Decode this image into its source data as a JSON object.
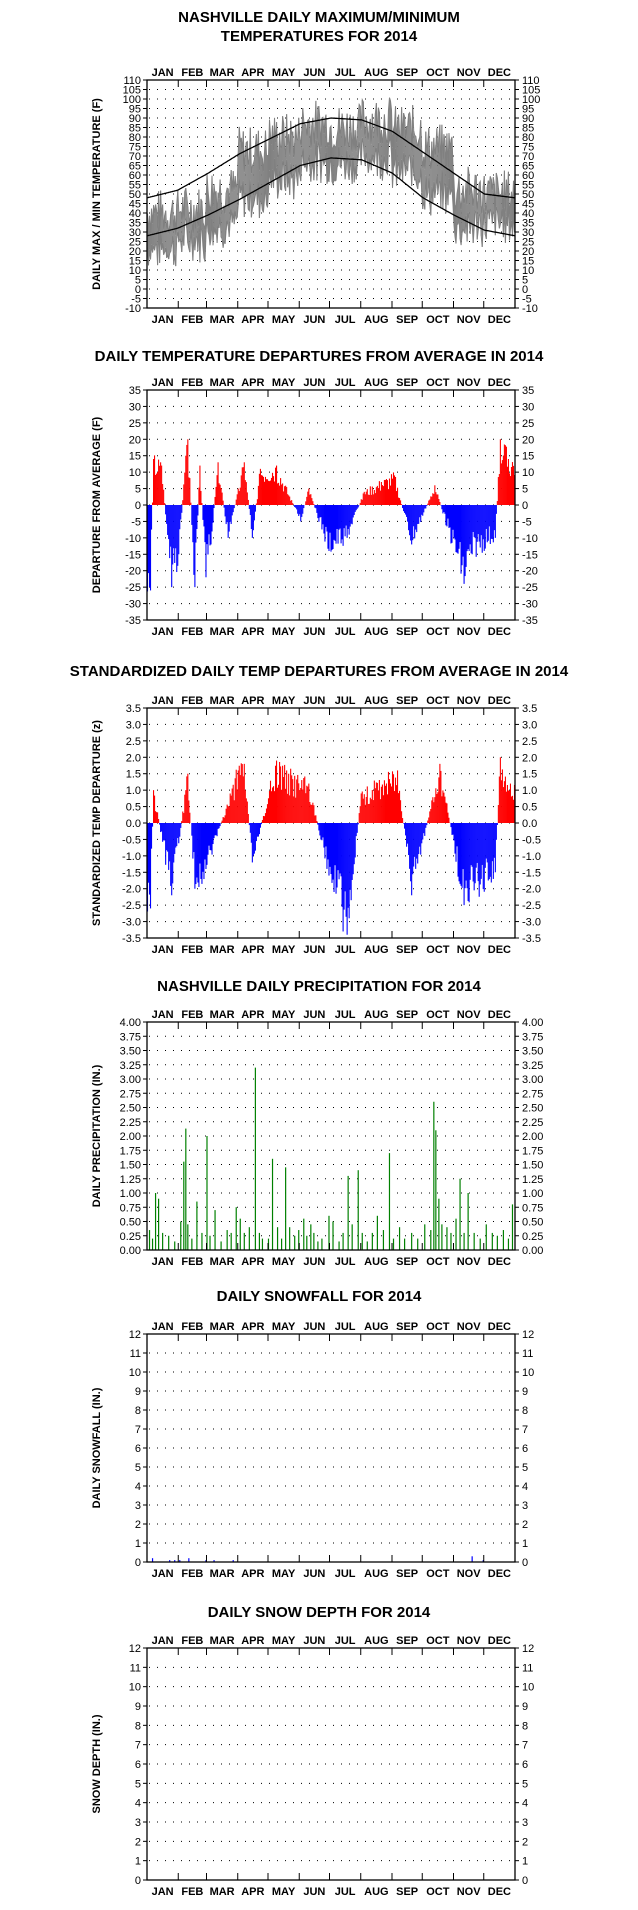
{
  "chart_data": [
    {
      "id": "temp",
      "type": "line",
      "title": [
        "NASHVILLE DAILY MAXIMUM/MINIMUM",
        "TEMPERATURES FOR 2014"
      ],
      "ylabel": "DAILY MAX / MIN TEMPERATURE (F)",
      "ylim": [
        -10,
        110
      ],
      "ytick_step": 5,
      "ytick_decimals": 0,
      "months": [
        "JAN",
        "FEB",
        "MAR",
        "APR",
        "MAY",
        "JUN",
        "JUL",
        "AUG",
        "SEP",
        "OCT",
        "NOV",
        "DEC"
      ],
      "series_color": "#808080",
      "normal_color": "#000000",
      "normal_high": [
        48,
        52,
        61,
        71,
        79,
        87,
        90,
        89,
        83,
        72,
        61,
        50,
        48
      ],
      "normal_low": [
        28,
        32,
        39,
        47,
        56,
        65,
        69,
        68,
        61,
        48,
        39,
        31,
        28
      ],
      "daily_high_monthly_mean": [
        40,
        42,
        52,
        73,
        80,
        87,
        85,
        89,
        84,
        74,
        52,
        50
      ],
      "daily_low_monthly_mean": [
        22,
        26,
        33,
        48,
        58,
        67,
        66,
        70,
        62,
        50,
        33,
        35
      ]
    },
    {
      "id": "dep",
      "type": "bar",
      "title": [
        "DAILY TEMPERATURE DEPARTURES FROM AVERAGE IN 2014"
      ],
      "ylabel": "DEPARTURE FROM AVERAGE (F)",
      "ylim": [
        -35,
        35
      ],
      "ytick_step": 5,
      "ytick_decimals": 0,
      "months": [
        "JAN",
        "FEB",
        "MAR",
        "APR",
        "MAY",
        "JUN",
        "JUL",
        "AUG",
        "SEP",
        "OCT",
        "NOV",
        "DEC"
      ],
      "pos_color": "#ff0000",
      "neg_color": "#0000ff",
      "events": [
        [
          3,
          -26
        ],
        [
          6,
          14
        ],
        [
          14,
          12
        ],
        [
          24,
          -25
        ],
        [
          31,
          -15
        ],
        [
          38,
          15
        ],
        [
          40,
          20
        ],
        [
          47,
          -25
        ],
        [
          52,
          12
        ],
        [
          58,
          -22
        ],
        [
          63,
          -12
        ],
        [
          70,
          13
        ],
        [
          80,
          -10
        ],
        [
          96,
          13
        ],
        [
          104,
          -10
        ],
        [
          112,
          11
        ],
        [
          128,
          12
        ],
        [
          152,
          -5
        ],
        [
          160,
          5
        ],
        [
          180,
          -14
        ],
        [
          198,
          -10
        ],
        [
          215,
          4
        ],
        [
          232,
          7
        ],
        [
          245,
          9
        ],
        [
          262,
          -12
        ],
        [
          285,
          6
        ],
        [
          314,
          -24
        ],
        [
          322,
          -15
        ],
        [
          345,
          -10
        ],
        [
          350,
          20
        ],
        [
          358,
          14
        ]
      ]
    },
    {
      "id": "std",
      "type": "bar",
      "title": [
        "STANDARDIZED DAILY TEMP DEPARTURES FROM AVERAGE IN 2014"
      ],
      "ylabel": "STANDARDIZED TEMP DEPARTURE (z)",
      "ylim": [
        -3.5,
        3.5
      ],
      "ytick_step": 0.5,
      "ytick_decimals": 1,
      "months": [
        "JAN",
        "FEB",
        "MAR",
        "APR",
        "MAY",
        "JUN",
        "JUL",
        "AUG",
        "SEP",
        "OCT",
        "NOV",
        "DEC"
      ],
      "pos_color": "#ff0000",
      "neg_color": "#0000ff",
      "events": [
        [
          3,
          -2.6
        ],
        [
          6,
          1.0
        ],
        [
          24,
          -2.2
        ],
        [
          38,
          1.0
        ],
        [
          40,
          1.5
        ],
        [
          47,
          -2.0
        ],
        [
          58,
          -1.4
        ],
        [
          90,
          1.6
        ],
        [
          96,
          1.8
        ],
        [
          104,
          -1.2
        ],
        [
          128,
          1.9
        ],
        [
          140,
          1.5
        ],
        [
          160,
          1.2
        ],
        [
          180,
          -1.6
        ],
        [
          198,
          -3.4
        ],
        [
          200,
          -2.9
        ],
        [
          212,
          0.9
        ],
        [
          235,
          1.3
        ],
        [
          248,
          1.6
        ],
        [
          262,
          -2.2
        ],
        [
          290,
          1.8
        ],
        [
          314,
          -2.5
        ],
        [
          345,
          -1.5
        ],
        [
          350,
          2.0
        ],
        [
          360,
          1.2
        ]
      ]
    },
    {
      "id": "prcp",
      "type": "bar",
      "title": [
        "NASHVILLE DAILY PRECIPITATION FOR 2014"
      ],
      "ylabel": "DAILY PRECIPITATION (IN.)",
      "ylim": [
        0,
        4
      ],
      "ytick_step": 0.25,
      "ytick_decimals": 2,
      "months": [
        "JAN",
        "FEB",
        "MAR",
        "APR",
        "MAY",
        "JUN",
        "JUL",
        "AUG",
        "SEP",
        "OCT",
        "NOV",
        "DEC"
      ],
      "color": "#008000",
      "values": [
        [
          2,
          0.35
        ],
        [
          5,
          0.2
        ],
        [
          8,
          1.0
        ],
        [
          11,
          0.9
        ],
        [
          15,
          0.3
        ],
        [
          21,
          0.25
        ],
        [
          27,
          0.15
        ],
        [
          33,
          0.5
        ],
        [
          36,
          1.55
        ],
        [
          38,
          2.13
        ],
        [
          40,
          0.45
        ],
        [
          44,
          0.2
        ],
        [
          49,
          0.85
        ],
        [
          54,
          0.3
        ],
        [
          59,
          2.0
        ],
        [
          62,
          0.25
        ],
        [
          67,
          0.7
        ],
        [
          73,
          0.15
        ],
        [
          79,
          0.35
        ],
        [
          83,
          0.3
        ],
        [
          88,
          0.75
        ],
        [
          92,
          0.55
        ],
        [
          96,
          0.3
        ],
        [
          101,
          0.4
        ],
        [
          107,
          3.2
        ],
        [
          111,
          0.3
        ],
        [
          114,
          0.2
        ],
        [
          120,
          0.2
        ],
        [
          124,
          1.6
        ],
        [
          129,
          0.4
        ],
        [
          133,
          0.2
        ],
        [
          137,
          1.45
        ],
        [
          141,
          0.4
        ],
        [
          146,
          0.25
        ],
        [
          150,
          0.35
        ],
        [
          155,
          0.55
        ],
        [
          158,
          0.25
        ],
        [
          162,
          0.45
        ],
        [
          165,
          0.3
        ],
        [
          169,
          0.15
        ],
        [
          173,
          0.2
        ],
        [
          180,
          0.6
        ],
        [
          184,
          0.5
        ],
        [
          190,
          0.15
        ],
        [
          194,
          0.3
        ],
        [
          199,
          1.3
        ],
        [
          203,
          0.45
        ],
        [
          209,
          1.4
        ],
        [
          213,
          0.3
        ],
        [
          218,
          0.15
        ],
        [
          223,
          0.3
        ],
        [
          228,
          0.6
        ],
        [
          234,
          0.35
        ],
        [
          240,
          1.7
        ],
        [
          244,
          0.2
        ],
        [
          250,
          0.4
        ],
        [
          255,
          0.2
        ],
        [
          262,
          0.3
        ],
        [
          268,
          0.2
        ],
        [
          275,
          0.45
        ],
        [
          281,
          0.35
        ],
        [
          284,
          2.6
        ],
        [
          286,
          2.1
        ],
        [
          289,
          0.9
        ],
        [
          292,
          0.45
        ],
        [
          297,
          0.4
        ],
        [
          301,
          0.3
        ],
        [
          306,
          0.55
        ],
        [
          310,
          1.25
        ],
        [
          314,
          0.3
        ],
        [
          318,
          1.0
        ],
        [
          324,
          0.3
        ],
        [
          330,
          0.2
        ],
        [
          336,
          0.45
        ],
        [
          342,
          0.3
        ],
        [
          347,
          0.25
        ],
        [
          353,
          0.35
        ],
        [
          358,
          0.2
        ],
        [
          362,
          0.8
        ]
      ]
    },
    {
      "id": "snow",
      "type": "bar",
      "title": [
        "DAILY SNOWFALL FOR 2014"
      ],
      "ylabel": "DAILY SNOWFALL (IN.)",
      "ylim": [
        0,
        12
      ],
      "ytick_step": 1,
      "ytick_decimals": 0,
      "months": [
        "JAN",
        "FEB",
        "MAR",
        "APR",
        "MAY",
        "JUN",
        "JUL",
        "AUG",
        "SEP",
        "OCT",
        "NOV",
        "DEC"
      ],
      "color": "#0000ff",
      "values": [
        [
          5,
          0.2
        ],
        [
          22,
          0.1
        ],
        [
          27,
          0.1
        ],
        [
          32,
          0.1
        ],
        [
          41,
          0.2
        ],
        [
          58,
          0.1
        ],
        [
          66,
          0.1
        ],
        [
          85,
          0.1
        ],
        [
          322,
          0.3
        ],
        [
          333,
          0.1
        ]
      ]
    },
    {
      "id": "depth",
      "type": "bar",
      "title": [
        "DAILY SNOW DEPTH FOR 2014"
      ],
      "ylabel": "SNOW DEPTH (IN.)",
      "ylim": [
        0,
        12
      ],
      "ytick_step": 1,
      "ytick_decimals": 0,
      "months": [
        "JAN",
        "FEB",
        "MAR",
        "APR",
        "MAY",
        "JUN",
        "JUL",
        "AUG",
        "SEP",
        "OCT",
        "NOV",
        "DEC"
      ],
      "color": "#0000ff",
      "values": []
    }
  ]
}
